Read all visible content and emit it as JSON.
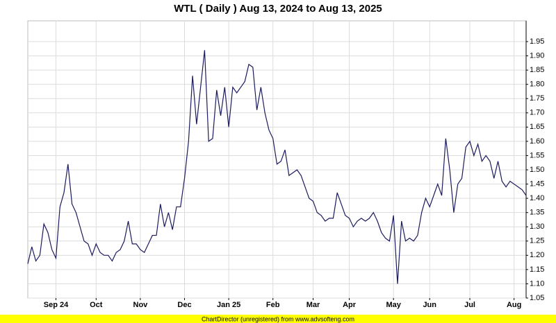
{
  "chart_data": {
    "type": "line",
    "title": "WTL ( Daily ) Aug 13, 2024 to Aug 13, 2025",
    "footer": "ChartDirector (unregistered) from www.advsofteng.com",
    "color": "#1a1a5e",
    "grid": true,
    "values": [
      1.17,
      1.23,
      1.18,
      1.2,
      1.31,
      1.28,
      1.22,
      1.19,
      1.37,
      1.42,
      1.52,
      1.38,
      1.35,
      1.3,
      1.25,
      1.24,
      1.2,
      1.24,
      1.21,
      1.2,
      1.2,
      1.18,
      1.21,
      1.22,
      1.25,
      1.32,
      1.24,
      1.24,
      1.22,
      1.21,
      1.24,
      1.27,
      1.27,
      1.38,
      1.3,
      1.35,
      1.29,
      1.37,
      1.37,
      1.47,
      1.6,
      1.83,
      1.66,
      1.79,
      1.92,
      1.6,
      1.61,
      1.78,
      1.69,
      1.79,
      1.65,
      1.79,
      1.77,
      1.79,
      1.81,
      1.87,
      1.86,
      1.71,
      1.79,
      1.7,
      1.64,
      1.61,
      1.52,
      1.53,
      1.57,
      1.48,
      1.49,
      1.5,
      1.48,
      1.44,
      1.4,
      1.39,
      1.35,
      1.34,
      1.32,
      1.33,
      1.33,
      1.42,
      1.38,
      1.34,
      1.33,
      1.3,
      1.32,
      1.33,
      1.32,
      1.33,
      1.35,
      1.32,
      1.28,
      1.26,
      1.25,
      1.34,
      1.1,
      1.32,
      1.25,
      1.26,
      1.25,
      1.27,
      1.35,
      1.4,
      1.37,
      1.41,
      1.45,
      1.41,
      1.61,
      1.5,
      1.35,
      1.45,
      1.47,
      1.58,
      1.6,
      1.55,
      1.59,
      1.53,
      1.55,
      1.53,
      1.47,
      1.53,
      1.46,
      1.44,
      1.46,
      1.45,
      1.44,
      1.43,
      1.41
    ],
    "xlim": [
      0,
      124
    ],
    "xticks": [
      {
        "value": 7,
        "label": "Sep 24"
      },
      {
        "value": 17,
        "label": "Oct"
      },
      {
        "value": 28,
        "label": "Nov"
      },
      {
        "value": 39,
        "label": "Dec"
      },
      {
        "value": 50,
        "label": "Jan 25"
      },
      {
        "value": 61,
        "label": "Feb"
      },
      {
        "value": 71,
        "label": "Mar"
      },
      {
        "value": 80,
        "label": "Apr"
      },
      {
        "value": 91,
        "label": "May"
      },
      {
        "value": 100,
        "label": "Jun"
      },
      {
        "value": 110,
        "label": "Jul"
      },
      {
        "value": 121,
        "label": "Aug"
      }
    ],
    "ylim": [
      1.05,
      2.023
    ],
    "yticks": [
      1.05,
      {
        "value": 1.1,
        "label": "1.10"
      },
      1.15,
      {
        "value": 1.2,
        "label": "1.20"
      },
      1.25,
      {
        "value": 1.3,
        "label": "1.30"
      },
      1.35,
      {
        "value": 1.4,
        "label": "1.40"
      },
      1.45,
      {
        "value": 1.5,
        "label": "1.50"
      },
      1.55,
      {
        "value": 1.6,
        "label": "1.60"
      },
      1.65,
      {
        "value": 1.7,
        "label": "1.70"
      },
      1.75,
      {
        "value": 1.8,
        "label": "1.80"
      },
      1.85,
      {
        "value": 1.9,
        "label": "1.90"
      },
      1.95
    ]
  }
}
